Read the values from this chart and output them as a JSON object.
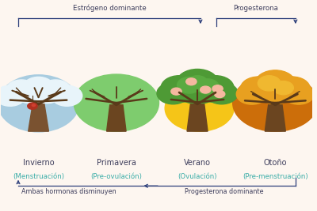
{
  "background_color": "#fdf6f0",
  "arrow_color": "#2c3e7a",
  "text_color_dark": "#3d3d5c",
  "text_color_teal": "#3aada8",
  "seasons": [
    "Invierno",
    "Primavera",
    "Verano",
    "Otoño"
  ],
  "subtitles": [
    "(Menstruación)",
    "(Pre-ovulación)",
    "(Ovulación)",
    "(Pre-menstruación)"
  ],
  "positions": [
    0.12,
    0.37,
    0.63,
    0.88
  ],
  "top_label_left": "Estrógeno dominante",
  "top_label_right": "Progesterona",
  "bottom_label_left": "Ambas hormonas disminuyen",
  "bottom_label_right": "Progesterona dominante",
  "tree_colors": {
    "winter_bg": "#a8cce0",
    "winter_cloud": "#e8f4fa",
    "winter_trunk": "#7a5230",
    "winter_branch": "#5a3a1a",
    "spring_bg": "#7ecc6e",
    "spring_trunk": "#6b4520",
    "spring_branch": "#5a3a1a",
    "summer_bg": "#f5c518",
    "summer_leaf": "#4e9a35",
    "summer_leaf2": "#5aaa40",
    "summer_trunk": "#6b4520",
    "summer_fruit": "#f5b8a0",
    "autumn_bg": "#cc6e0a",
    "autumn_leaf": "#e8a020",
    "autumn_leaf2": "#f0b830",
    "autumn_trunk": "#6b4520"
  }
}
